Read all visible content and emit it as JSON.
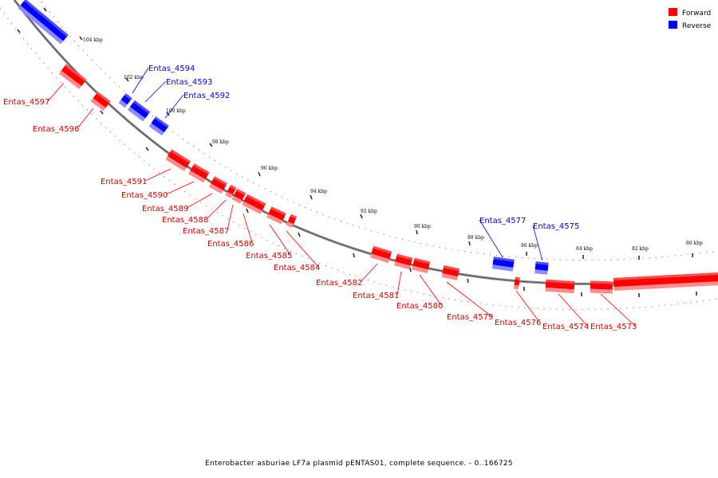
{
  "title": "Enterobacter asburiae LF7a plasmid pENTAS01, complete sequence. - 0..166725",
  "legend": [
    {
      "label": "Forward",
      "color": "#ff0000"
    },
    {
      "label": "Reverse",
      "color": "#0000ff"
    }
  ],
  "colors": {
    "forward": "#ff0000",
    "reverse": "#0000ff",
    "backbone": "#777777"
  },
  "ticks": [
    "104 kbp",
    "102 kbp",
    "100 kbp",
    "98 kbp",
    "96 kbp",
    "94 kbp",
    "92 kbp",
    "90 kbp",
    "88 kbp",
    "86 kbp",
    "84 kbp",
    "82 kbp",
    "80 kbp"
  ],
  "genes": [
    {
      "label": "Entas_4597",
      "strand": "forward"
    },
    {
      "label": "Entas_4596",
      "strand": "forward"
    },
    {
      "label": "Entas_4594",
      "strand": "reverse"
    },
    {
      "label": "Entas_4593",
      "strand": "reverse"
    },
    {
      "label": "Entas_4592",
      "strand": "reverse"
    },
    {
      "label": "Entas_4591",
      "strand": "forward"
    },
    {
      "label": "Entas_4590",
      "strand": "forward"
    },
    {
      "label": "Entas_4589",
      "strand": "forward"
    },
    {
      "label": "Entas_4588",
      "strand": "forward"
    },
    {
      "label": "Entas_4587",
      "strand": "forward"
    },
    {
      "label": "Entas_4586",
      "strand": "forward"
    },
    {
      "label": "Entas_4585",
      "strand": "forward"
    },
    {
      "label": "Entas_4584",
      "strand": "forward"
    },
    {
      "label": "Entas_4582",
      "strand": "forward"
    },
    {
      "label": "Entas_4581",
      "strand": "forward"
    },
    {
      "label": "Entas_4580",
      "strand": "forward"
    },
    {
      "label": "Entas_4579",
      "strand": "forward"
    },
    {
      "label": "Entas_4577",
      "strand": "reverse"
    },
    {
      "label": "Entas_4576",
      "strand": "forward"
    },
    {
      "label": "Entas_4575",
      "strand": "reverse"
    },
    {
      "label": "Entas_4574",
      "strand": "forward"
    },
    {
      "label": "Entas_4573",
      "strand": "forward"
    }
  ]
}
